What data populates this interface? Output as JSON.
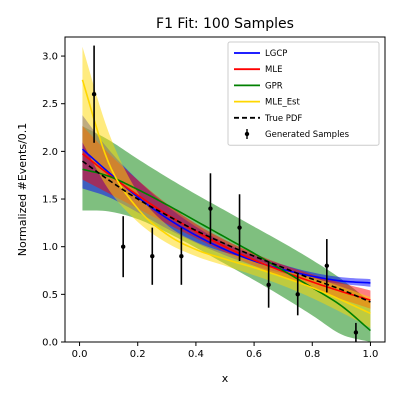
{
  "chart_data": {
    "type": "line",
    "title": "F1 Fit: 100 Samples",
    "xlabel": "x",
    "ylabel": "Normalized #Events/0.1",
    "xlim": [
      -0.05,
      1.05
    ],
    "ylim": [
      0.0,
      3.2
    ],
    "xticks": [
      "0.0",
      "0.2",
      "0.4",
      "0.6",
      "0.8",
      "1.0"
    ],
    "yticks": [
      "0.0",
      "0.5",
      "1.0",
      "1.5",
      "2.0",
      "2.5",
      "3.0"
    ],
    "grid": false,
    "legend_position": "top-right",
    "legend": [
      "LGCP",
      "MLE",
      "GPR",
      "MLE_Est",
      "True PDF",
      "Generated Samples"
    ],
    "colors": {
      "LGCP": "#0000ff",
      "MLE": "#ff0000",
      "GPR": "#008000",
      "MLE_Est": "#ffd700",
      "True PDF": "#000000",
      "Generated Samples": "#000000"
    },
    "x": [
      0.0,
      0.1,
      0.2,
      0.3,
      0.4,
      0.5,
      0.6,
      0.7,
      0.8,
      0.9,
      1.0
    ],
    "series": [
      {
        "name": "LGCP",
        "values": [
          2.05,
          1.78,
          1.52,
          1.3,
          1.12,
          0.97,
          0.85,
          0.76,
          0.69,
          0.64,
          0.62
        ],
        "band_lower": [
          1.62,
          1.52,
          1.36,
          1.19,
          1.04,
          0.91,
          0.8,
          0.72,
          0.66,
          0.61,
          0.58
        ],
        "band_upper": [
          2.42,
          2.02,
          1.7,
          1.43,
          1.21,
          1.04,
          0.91,
          0.81,
          0.73,
          0.68,
          0.66
        ]
      },
      {
        "name": "MLE",
        "values": [
          2.0,
          1.76,
          1.54,
          1.34,
          1.16,
          1.0,
          0.86,
          0.74,
          0.63,
          0.53,
          0.44
        ],
        "band_lower": [
          1.72,
          1.56,
          1.4,
          1.24,
          1.09,
          0.94,
          0.8,
          0.68,
          0.56,
          0.45,
          0.35
        ],
        "band_upper": [
          2.3,
          1.98,
          1.7,
          1.45,
          1.24,
          1.07,
          0.93,
          0.81,
          0.71,
          0.62,
          0.54
        ]
      },
      {
        "name": "GPR",
        "values": [
          1.82,
          1.74,
          1.6,
          1.44,
          1.27,
          1.1,
          0.93,
          0.75,
          0.57,
          0.38,
          0.12
        ],
        "band_lower": [
          1.38,
          1.37,
          1.29,
          1.15,
          0.99,
          0.82,
          0.65,
          0.47,
          0.28,
          0.08,
          0.0
        ],
        "band_upper": [
          2.28,
          2.12,
          1.92,
          1.73,
          1.55,
          1.38,
          1.21,
          1.04,
          0.86,
          0.66,
          0.42
        ]
      },
      {
        "name": "MLE_Est",
        "values": [
          2.85,
          1.88,
          1.4,
          1.13,
          0.97,
          0.87,
          0.78,
          0.68,
          0.57,
          0.44,
          0.3
        ],
        "band_lower": [
          2.15,
          1.6,
          1.26,
          1.04,
          0.9,
          0.8,
          0.7,
          0.59,
          0.46,
          0.31,
          0.15
        ],
        "band_upper": [
          3.2,
          2.2,
          1.57,
          1.23,
          1.05,
          0.94,
          0.86,
          0.77,
          0.68,
          0.58,
          0.47
        ]
      },
      {
        "name": "True PDF",
        "values": [
          1.92,
          1.7,
          1.5,
          1.33,
          1.17,
          1.03,
          0.9,
          0.78,
          0.66,
          0.55,
          0.42
        ]
      }
    ],
    "samples": {
      "name": "Generated Samples",
      "x": [
        0.05,
        0.15,
        0.25,
        0.35,
        0.45,
        0.55,
        0.65,
        0.75,
        0.85,
        0.95
      ],
      "y": [
        2.6,
        1.0,
        0.9,
        0.9,
        1.4,
        1.2,
        0.6,
        0.5,
        0.8,
        0.1
      ],
      "yerr": [
        0.51,
        0.32,
        0.3,
        0.3,
        0.37,
        0.35,
        0.24,
        0.22,
        0.28,
        0.1
      ]
    }
  }
}
